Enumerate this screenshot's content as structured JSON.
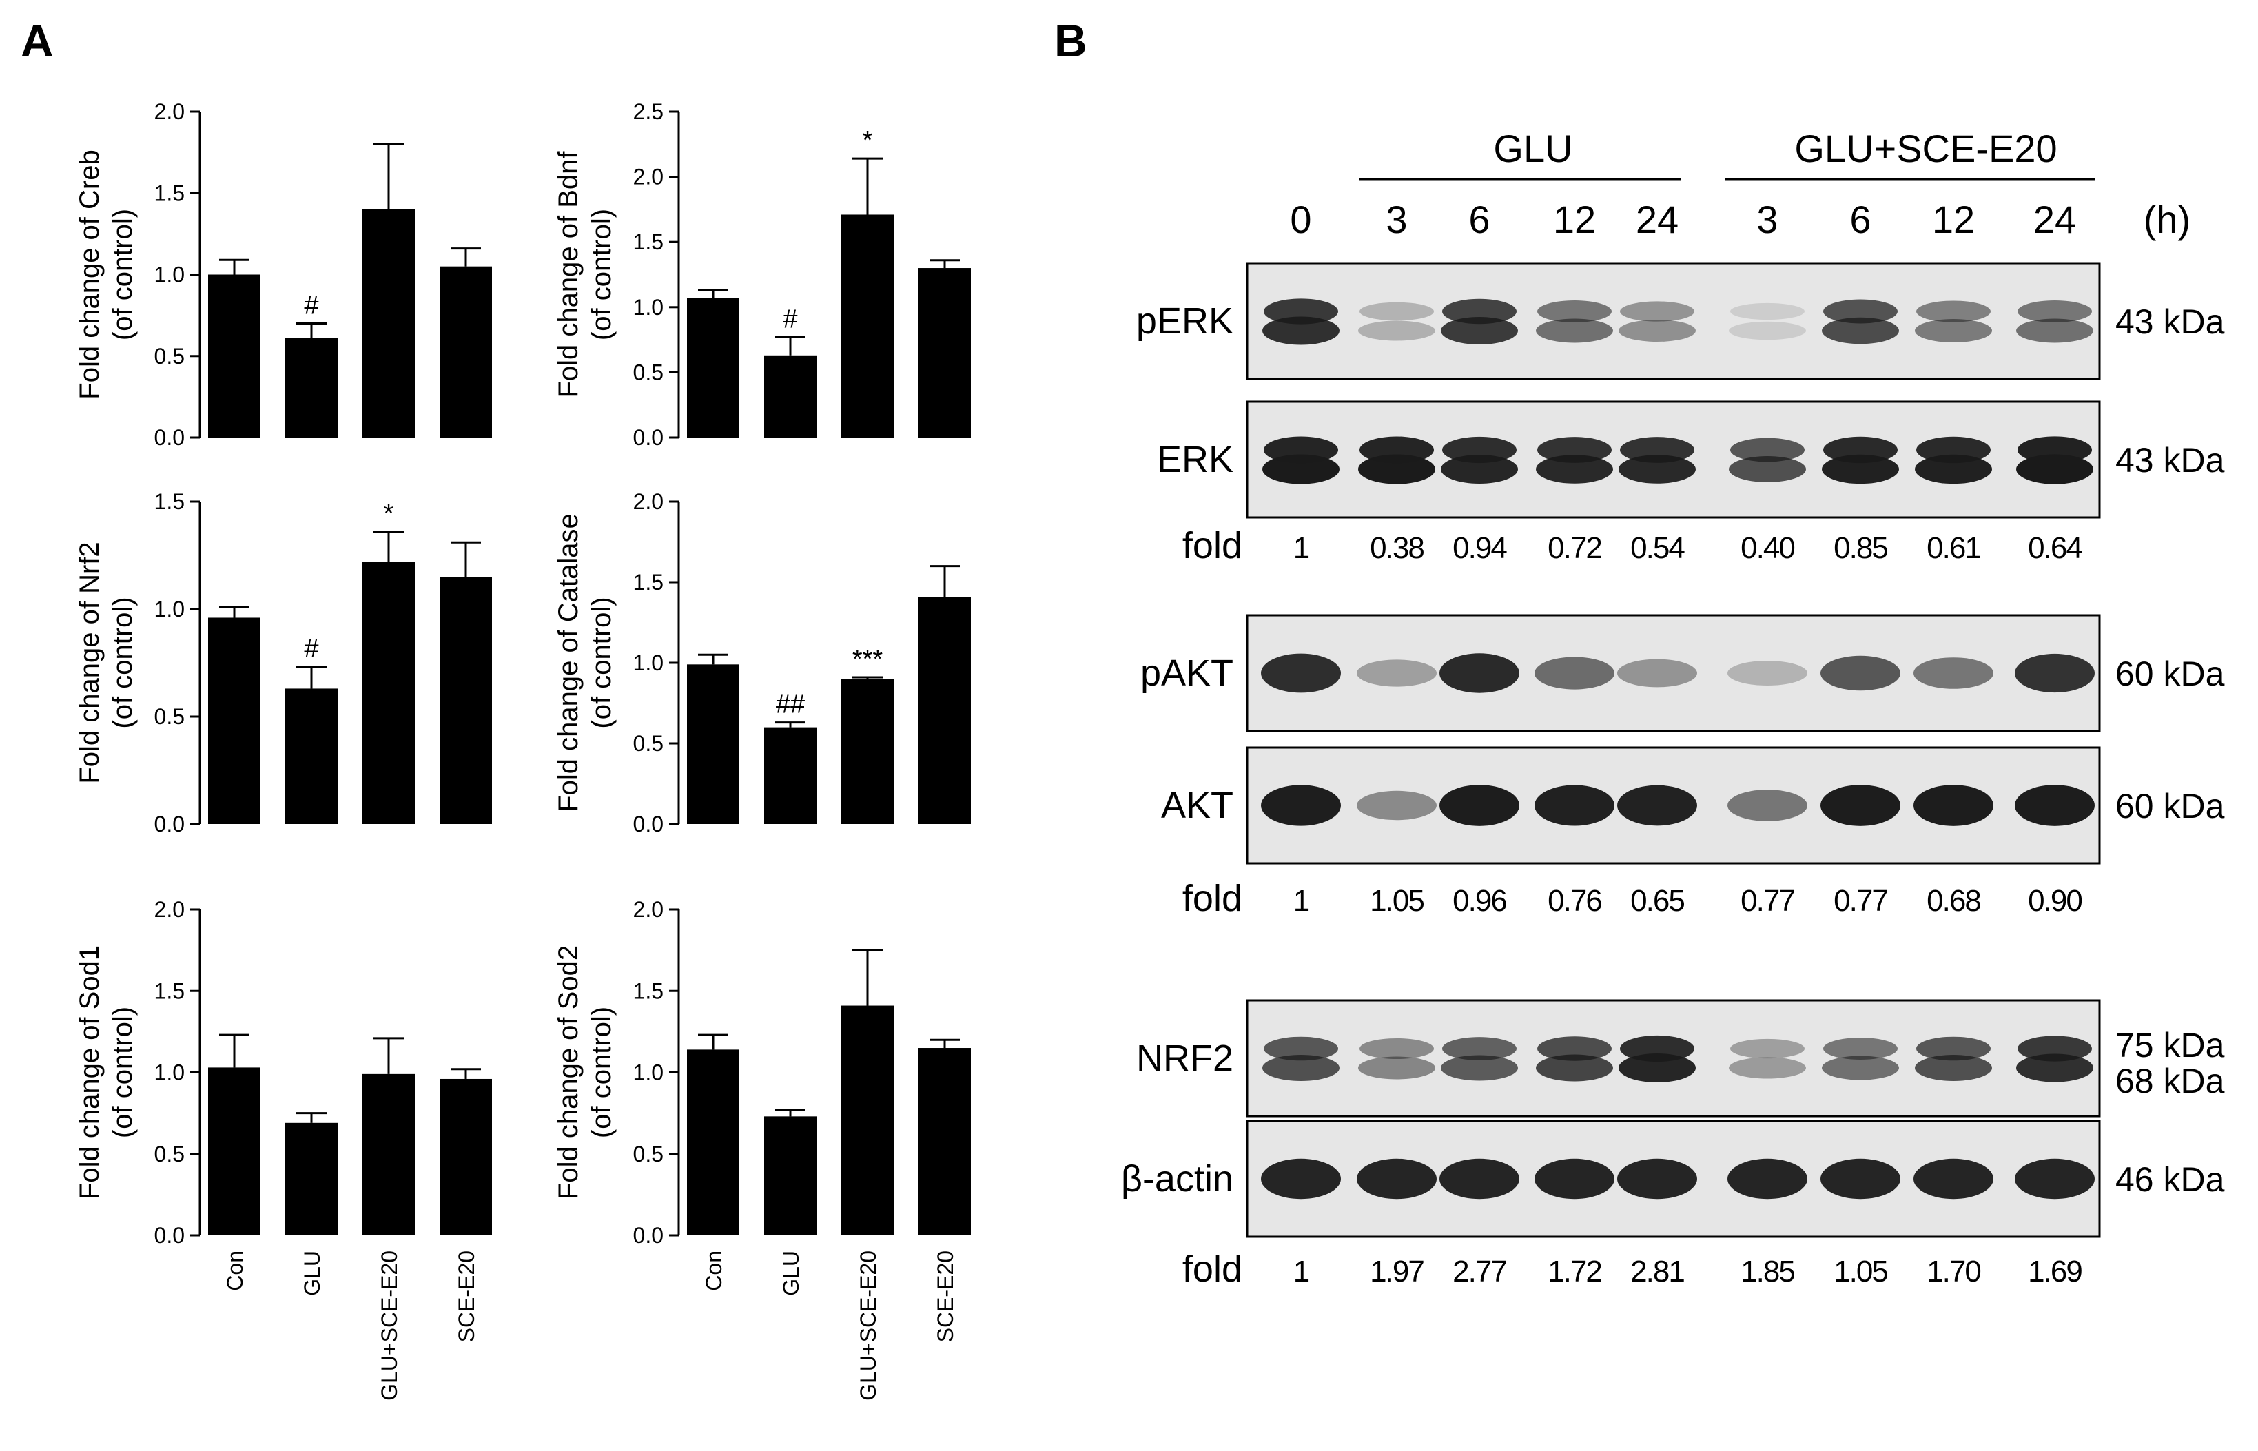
{
  "panels": {
    "a": "A",
    "b": "B"
  },
  "colors": {
    "bar": "#000000",
    "blot_bg": "#e6e6e6",
    "band": "#1a1a1a"
  },
  "chart_data": [
    {
      "type": "bar",
      "id": "creb",
      "ylabel_line1": "Fold change of Creb",
      "ylabel_line2": "(of control)",
      "ylim": [
        0,
        2.0
      ],
      "yticks": [
        "0.0",
        "0.5",
        "1.0",
        "1.5",
        "2.0"
      ],
      "ytick_values": [
        0,
        0.5,
        1.0,
        1.5,
        2.0
      ],
      "categories": [
        "Con",
        "GLU",
        "GLU+SCE-E20",
        "SCE-E20"
      ],
      "values": [
        1.0,
        0.61,
        1.4,
        1.05
      ],
      "errors": [
        0.09,
        0.09,
        0.4,
        0.11
      ],
      "annotations": [
        "",
        "#",
        "",
        ""
      ],
      "show_categories": false
    },
    {
      "type": "bar",
      "id": "bdnf",
      "ylabel_line1": "Fold change of Bdnf",
      "ylabel_line2": "(of control)",
      "ylim": [
        0,
        2.5
      ],
      "yticks": [
        "0.0",
        "0.5",
        "1.0",
        "1.5",
        "2.0",
        "2.5"
      ],
      "ytick_values": [
        0,
        0.5,
        1.0,
        1.5,
        2.0,
        2.5
      ],
      "categories": [
        "Con",
        "GLU",
        "GLU+SCE-E20",
        "SCE-E20"
      ],
      "values": [
        1.07,
        0.63,
        1.71,
        1.3
      ],
      "errors": [
        0.06,
        0.14,
        0.43,
        0.06
      ],
      "annotations": [
        "",
        "#",
        "*",
        ""
      ],
      "show_categories": false
    },
    {
      "type": "bar",
      "id": "nrf2",
      "ylabel_line1": "Fold change of Nrf2",
      "ylabel_line2": "(of control)",
      "ylim": [
        0,
        1.5
      ],
      "yticks": [
        "0.0",
        "0.5",
        "1.0",
        "1.5"
      ],
      "ytick_values": [
        0,
        0.5,
        1.0,
        1.5
      ],
      "categories": [
        "Con",
        "GLU",
        "GLU+SCE-E20",
        "SCE-E20"
      ],
      "values": [
        0.96,
        0.63,
        1.22,
        1.15
      ],
      "errors": [
        0.05,
        0.1,
        0.14,
        0.16
      ],
      "annotations": [
        "",
        "#",
        "*",
        ""
      ],
      "show_categories": false
    },
    {
      "type": "bar",
      "id": "catalase",
      "ylabel_line1": "Fold change of Catalase",
      "ylabel_line2": "(of control)",
      "ylim": [
        0,
        2.0
      ],
      "yticks": [
        "0.0",
        "0.5",
        "1.0",
        "1.5",
        "2.0"
      ],
      "ytick_values": [
        0,
        0.5,
        1.0,
        1.5,
        2.0
      ],
      "categories": [
        "Con",
        "GLU",
        "GLU+SCE-E20",
        "SCE-E20"
      ],
      "values": [
        0.99,
        0.6,
        0.9,
        1.41
      ],
      "errors": [
        0.06,
        0.03,
        0.01,
        0.19
      ],
      "annotations": [
        "",
        "##",
        "***",
        ""
      ],
      "show_categories": false
    },
    {
      "type": "bar",
      "id": "sod1",
      "ylabel_line1": "Fold change of Sod1",
      "ylabel_line2": "(of control)",
      "ylim": [
        0,
        2.0
      ],
      "yticks": [
        "0.0",
        "0.5",
        "1.0",
        "1.5",
        "2.0"
      ],
      "ytick_values": [
        0,
        0.5,
        1.0,
        1.5,
        2.0
      ],
      "categories": [
        "Con",
        "GLU",
        "GLU+SCE-E20",
        "SCE-E20"
      ],
      "values": [
        1.03,
        0.69,
        0.99,
        0.96
      ],
      "errors": [
        0.2,
        0.06,
        0.22,
        0.06
      ],
      "annotations": [
        "",
        "",
        "",
        ""
      ],
      "show_categories": true
    },
    {
      "type": "bar",
      "id": "sod2",
      "ylabel_line1": "Fold change of Sod2",
      "ylabel_line2": "(of control)",
      "ylim": [
        0,
        2.0
      ],
      "yticks": [
        "0.0",
        "0.5",
        "1.0",
        "1.5",
        "2.0"
      ],
      "ytick_values": [
        0,
        0.5,
        1.0,
        1.5,
        2.0
      ],
      "categories": [
        "Con",
        "GLU",
        "GLU+SCE-E20",
        "SCE-E20"
      ],
      "values": [
        1.14,
        0.73,
        1.41,
        1.15
      ],
      "errors": [
        0.09,
        0.04,
        0.34,
        0.05
      ],
      "annotations": [
        "",
        "",
        "",
        ""
      ],
      "show_categories": true
    }
  ],
  "blot": {
    "group_glu": "GLU",
    "group_sce": "GLU+SCE-E20",
    "timepoints": [
      "0",
      "3",
      "6",
      "12",
      "24",
      "3",
      "6",
      "12",
      "24"
    ],
    "unit": "(h)",
    "fold_label": "fold",
    "rows": [
      {
        "label": "pERK",
        "kda": "43 kDa",
        "intensity": [
          0.85,
          0.25,
          0.8,
          0.55,
          0.4,
          0.12,
          0.72,
          0.5,
          0.55
        ],
        "double": true
      },
      {
        "label": "ERK",
        "kda": "43 kDa",
        "intensity": [
          0.95,
          0.95,
          0.9,
          0.88,
          0.88,
          0.7,
          0.92,
          0.92,
          0.96
        ],
        "double": true
      },
      {
        "label": "pAKT",
        "kda": "60 kDa",
        "intensity": [
          0.9,
          0.35,
          0.92,
          0.6,
          0.4,
          0.25,
          0.7,
          0.55,
          0.88
        ],
        "double": false
      },
      {
        "label": "AKT",
        "kda": "60 kDa",
        "intensity": [
          0.98,
          0.45,
          0.99,
          0.97,
          0.96,
          0.55,
          0.99,
          0.99,
          0.99
        ],
        "double": false
      },
      {
        "label": "NRF2",
        "kda": "75 kDa",
        "kda2": "68 kDa",
        "intensity": [
          0.7,
          0.45,
          0.65,
          0.75,
          0.9,
          0.35,
          0.55,
          0.7,
          0.85
        ],
        "double": true
      },
      {
        "label": "β-actin",
        "kda": "46 kDa",
        "intensity": [
          0.95,
          0.95,
          0.95,
          0.95,
          0.95,
          0.95,
          0.95,
          0.95,
          0.95
        ],
        "double": false
      }
    ],
    "fold_erk": [
      "1",
      "0.38",
      "0.94",
      "0.72",
      "0.54",
      "0.40",
      "0.85",
      "0.61",
      "0.64"
    ],
    "fold_akt": [
      "1",
      "1.05",
      "0.96",
      "0.76",
      "0.65",
      "0.77",
      "0.77",
      "0.68",
      "0.90"
    ],
    "fold_nrf2": [
      "1",
      "1.97",
      "2.77",
      "1.72",
      "2.81",
      "1.85",
      "1.05",
      "1.70",
      "1.69"
    ]
  }
}
